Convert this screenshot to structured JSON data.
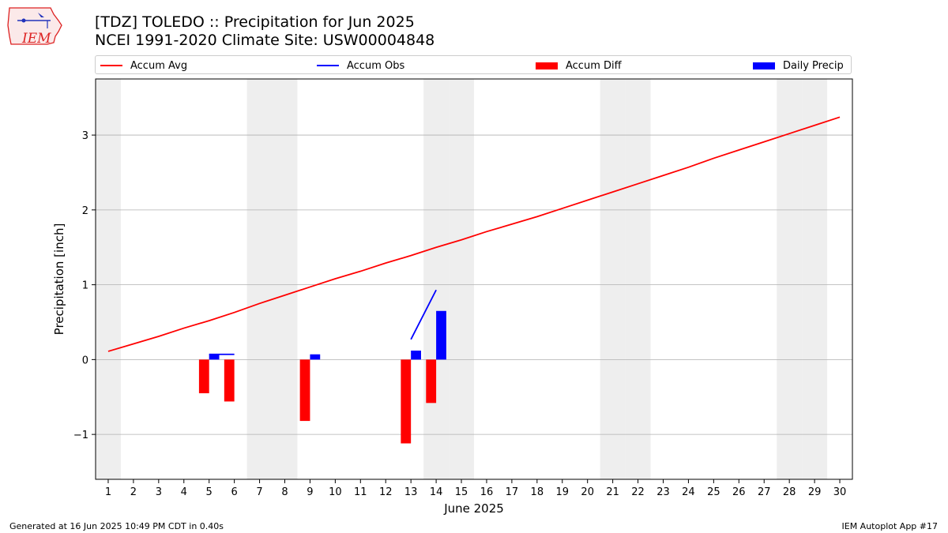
{
  "header": {
    "title_line1": "[TDZ] TOLEDO :: Precipitation for Jun 2025",
    "title_line2": "NCEI 1991-2020 Climate Site: USW00004848"
  },
  "logo": {
    "text": "IEM"
  },
  "footer": {
    "generated": "Generated at 16 Jun 2025 10:49 PM CDT in 0.40s",
    "app": "IEM Autoplot App #17"
  },
  "colors": {
    "avg": "#ff0000",
    "obs": "#0000ff",
    "diff": "#ff0000",
    "daily": "#0000ff",
    "weekend": "#eeeeee",
    "grid": "#b0b0b0"
  },
  "chart_data": {
    "type": "bar",
    "xlabel": "June 2025",
    "ylabel": "Precipitation [inch]",
    "ylim": [
      -1.6,
      3.75
    ],
    "yticks": [
      -1,
      0,
      1,
      2,
      3
    ],
    "ytick_labels": [
      "−1",
      "0",
      "1",
      "2",
      "3"
    ],
    "days": [
      1,
      2,
      3,
      4,
      5,
      6,
      7,
      8,
      9,
      10,
      11,
      12,
      13,
      14,
      15,
      16,
      17,
      18,
      19,
      20,
      21,
      22,
      23,
      24,
      25,
      26,
      27,
      28,
      29,
      30
    ],
    "weekend_days": [
      1,
      7,
      8,
      14,
      15,
      21,
      22,
      28,
      29
    ],
    "grid": true,
    "legend_placement": "top",
    "series": [
      {
        "name": "Accum Avg",
        "kind": "line",
        "x": [
          1,
          2,
          3,
          4,
          5,
          6,
          7,
          8,
          9,
          10,
          11,
          12,
          13,
          14,
          15,
          16,
          17,
          18,
          19,
          20,
          21,
          22,
          23,
          24,
          25,
          26,
          27,
          28,
          29,
          30
        ],
        "values": [
          0.11,
          0.21,
          0.31,
          0.42,
          0.52,
          0.63,
          0.75,
          0.86,
          0.97,
          1.08,
          1.18,
          1.29,
          1.39,
          1.5,
          1.6,
          1.71,
          1.81,
          1.91,
          2.02,
          2.13,
          2.24,
          2.35,
          2.46,
          2.57,
          2.69,
          2.8,
          2.91,
          3.02,
          3.13,
          3.24
        ]
      },
      {
        "name": "Accum Obs",
        "kind": "line",
        "x": [
          5,
          6,
          13,
          14
        ],
        "values": [
          0.07,
          0.07,
          0.27,
          0.93
        ],
        "segments": [
          [
            5,
            6
          ],
          [
            13,
            14
          ]
        ]
      },
      {
        "name": "Accum Diff",
        "kind": "bar",
        "x": [
          5,
          6,
          9,
          13,
          14
        ],
        "values": [
          -0.45,
          -0.56,
          -0.82,
          -1.12,
          -0.58
        ]
      },
      {
        "name": "Daily Precip",
        "kind": "bar",
        "x": [
          5,
          9,
          13,
          14
        ],
        "values": [
          0.07,
          0.07,
          0.12,
          0.65
        ]
      }
    ]
  }
}
